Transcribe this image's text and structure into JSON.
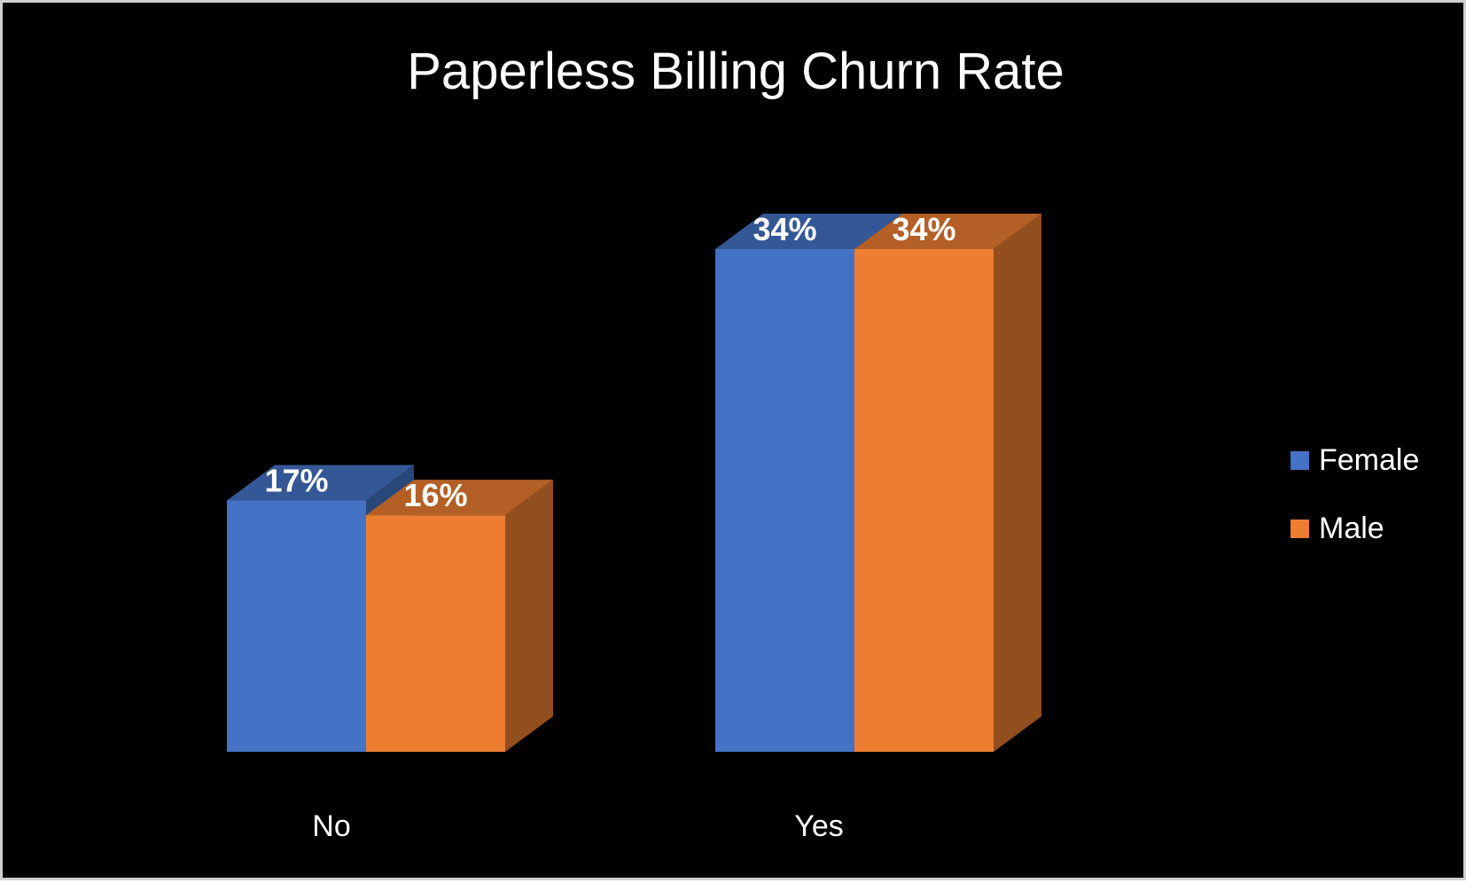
{
  "chart_data": {
    "type": "bar",
    "style": "3d-clustered-column",
    "title": "Paperless Billing Churn Rate",
    "categories": [
      "No",
      "Yes"
    ],
    "series": [
      {
        "name": "Female",
        "values": [
          0.17,
          0.34
        ],
        "labels": [
          "17%",
          "34%"
        ],
        "color": "#4472C4"
      },
      {
        "name": "Male",
        "values": [
          0.16,
          0.34
        ],
        "labels": [
          "16%",
          "34%"
        ],
        "color": "#ED7D31"
      }
    ],
    "ylim": [
      0,
      0.4
    ],
    "grid": false,
    "legend": "right",
    "background": "#000000"
  }
}
